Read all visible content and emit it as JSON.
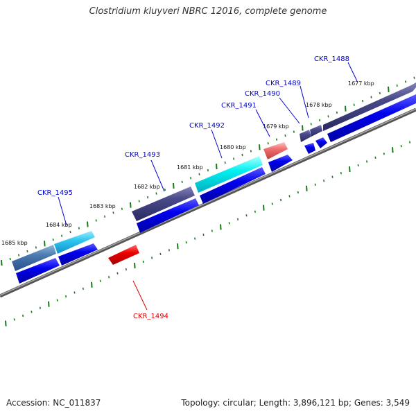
{
  "header": {
    "title": "Clostridium kluyveri NBRC 12016, complete genome"
  },
  "footer": {
    "accession": "Accession: NC_011837",
    "info": "Topology: circular; Length: 3,896,121 bp; Genes: 3,549"
  },
  "colors": {
    "backbone": "#888888",
    "tick": "#1a7a1a",
    "cds": "#0000ee",
    "gene_label": "#0000cc",
    "gene_label_highlight": "#dd0000"
  },
  "scale_labels": [
    "1677 kbp",
    "1678 kbp",
    "1679 kbp",
    "1680 kbp",
    "1681 kbp",
    "1682 kbp",
    "1683 kbp",
    "1684 kbp",
    "1685 kbp"
  ],
  "genes": [
    {
      "label": "CKR_1488",
      "color": "#0000cc"
    },
    {
      "label": "CKR_1489",
      "color": "#0000cc"
    },
    {
      "label": "CKR_1490",
      "color": "#0000cc"
    },
    {
      "label": "CKR_1491",
      "color": "#0000cc"
    },
    {
      "label": "CKR_1492",
      "color": "#0000cc"
    },
    {
      "label": "CKR_1493",
      "color": "#0000cc"
    },
    {
      "label": "CKR_1495",
      "color": "#0000cc"
    },
    {
      "label": "CKR_1494",
      "color": "#dd0000"
    }
  ]
}
